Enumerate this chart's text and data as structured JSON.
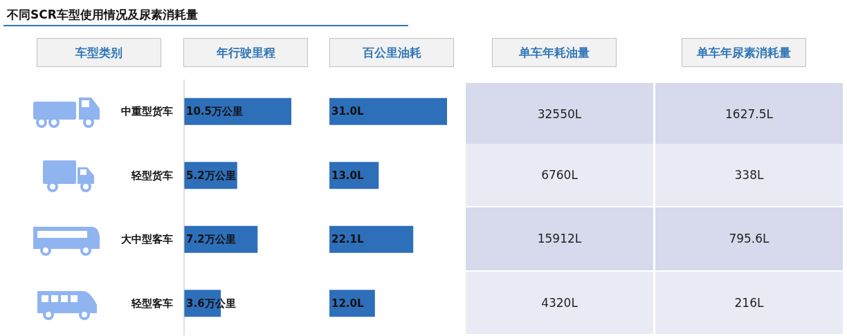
{
  "chart_data": [
    {
      "type": "bar",
      "orientation": "horizontal",
      "title": "不同SCR车型使用情况及尿素消耗量",
      "xlabel": "年行驶里程",
      "ylabel": "车型类别",
      "categories": [
        "中重型货车",
        "轻型货车",
        "大中型客车",
        "轻型客车"
      ],
      "values": [
        10.5,
        5.2,
        7.2,
        3.6
      ],
      "value_labels": [
        "10.5万公里",
        "5.2万公里",
        "7.2万公里",
        "3.6万公里"
      ],
      "color": "#2e6fba",
      "tick_labels": "y"
    },
    {
      "type": "bar",
      "orientation": "horizontal",
      "xlabel": "百公里油耗",
      "values": [
        31.0,
        13.0,
        22.1,
        12.0
      ],
      "value_labels": [
        "31.0L",
        "13.0L",
        "22.1L",
        "12.0L"
      ],
      "color": "#2e6fba",
      "tick_labels": false
    },
    {
      "type": "other",
      "categories": [
        "单车年耗油量",
        "单车年尿素消耗量"
      ],
      "annotations": [
        "32550L",
        "1627.5L",
        "6760L",
        "338L",
        "15912L",
        "795.6L",
        "4320L",
        "216L"
      ]
    }
  ]
}
